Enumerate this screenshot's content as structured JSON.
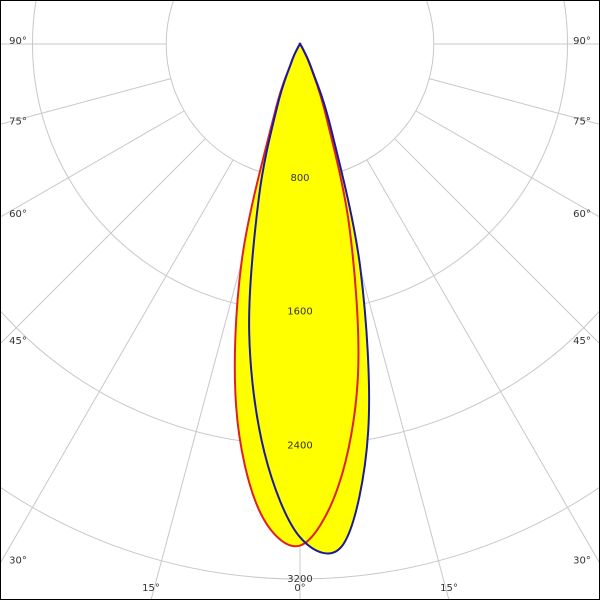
{
  "chart_data": {
    "type": "polar",
    "rlim": [
      0,
      3200
    ],
    "rticks": [
      800,
      1600,
      2400,
      3200
    ],
    "angleticks": [
      {
        "value": 0,
        "label": "0°"
      },
      {
        "value": 15,
        "label": "15°"
      },
      {
        "value": 30,
        "label": "30°"
      },
      {
        "value": 45,
        "label": "45°"
      },
      {
        "value": 60,
        "label": "60°"
      },
      {
        "value": 75,
        "label": "75°"
      },
      {
        "value": 90,
        "label": "90°"
      }
    ],
    "angles": [
      -40,
      -35,
      -30,
      -25,
      -20,
      -15,
      -10,
      -5,
      0,
      5,
      10,
      15,
      20,
      25,
      30,
      35,
      40
    ],
    "fill_color": "#ffff00",
    "grid": true,
    "series": [
      {
        "color": "#e02020",
        "values": [
          0,
          0,
          30,
          120,
          450,
          1350,
          2200,
          2800,
          3000,
          2650,
          2000,
          1150,
          450,
          150,
          30,
          0,
          0
        ]
      },
      {
        "color": "#1a1aa0",
        "values": [
          0,
          0,
          30,
          130,
          400,
          950,
          1750,
          2450,
          2950,
          3000,
          2350,
          1400,
          550,
          170,
          40,
          0,
          0
        ]
      }
    ]
  }
}
